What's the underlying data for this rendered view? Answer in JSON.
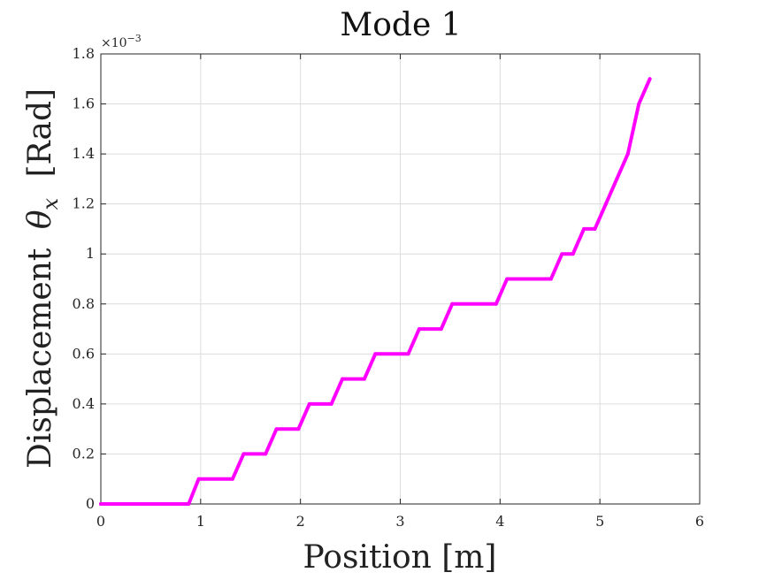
{
  "chart_data": {
    "type": "line",
    "title": "Mode 1",
    "xlabel": "Position [m]",
    "ylabel": "Displacement θx [Rad]",
    "ylabel_text": "Displacement",
    "ylabel_symbol": "θ",
    "ylabel_subscript": "x",
    "ylabel_unit": "[Rad]",
    "y_exponent_label": "×10−3",
    "y_exponent_base": "×10",
    "y_exponent_power": "−3",
    "xlim": [
      0,
      6
    ],
    "ylim": [
      0,
      1.8
    ],
    "xticks": [
      0,
      1,
      2,
      3,
      4,
      5,
      6
    ],
    "xtick_labels": [
      "0",
      "1",
      "2",
      "3",
      "4",
      "5",
      "6"
    ],
    "yticks": [
      0,
      0.2,
      0.4,
      0.6,
      0.8,
      1.0,
      1.2,
      1.4,
      1.6,
      1.8
    ],
    "ytick_labels": [
      "0",
      "0.2",
      "0.4",
      "0.6",
      "0.8",
      "1",
      "1.2",
      "1.4",
      "1.6",
      "1.8"
    ],
    "grid": true,
    "colors": {
      "series": "#ff00ff",
      "axes": "#262626",
      "grid": "#dcdcdc"
    },
    "series": [
      {
        "x": [
          0,
          0.88,
          0.98,
          1.32,
          1.43,
          1.65,
          1.76,
          1.98,
          2.09,
          2.31,
          2.42,
          2.64,
          2.75,
          3.08,
          3.19,
          3.41,
          3.52,
          3.96,
          4.07,
          4.51,
          4.62,
          4.73,
          4.84,
          4.95,
          5.06,
          5.17,
          5.28,
          5.39,
          5.5
        ],
        "y": [
          0,
          0,
          0.1,
          0.1,
          0.2,
          0.2,
          0.3,
          0.3,
          0.4,
          0.4,
          0.5,
          0.5,
          0.6,
          0.6,
          0.7,
          0.7,
          0.8,
          0.8,
          0.9,
          0.9,
          1.0,
          1.0,
          1.1,
          1.1,
          1.2,
          1.3,
          1.4,
          1.6,
          1.7
        ]
      }
    ]
  }
}
